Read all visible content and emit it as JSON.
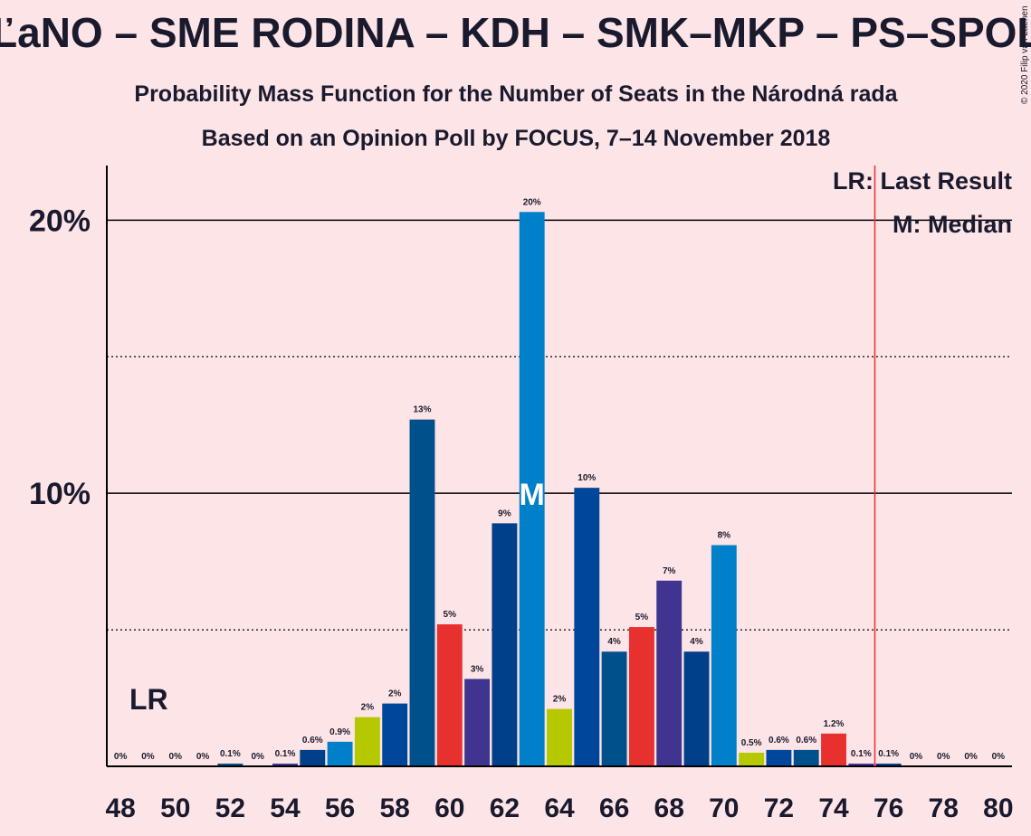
{
  "chart_data": {
    "type": "bar",
    "title": "OĽaNO – SME RODINA – KDH – SMK–MKP – PS–SPOLU",
    "subtitle": "Probability Mass Function for the Number of Seats in the Národná rada",
    "subtitle2": "Based on an Opinion Poll by FOCUS, 7–14 November 2018",
    "copyright": "© 2020 Filip van Laenen",
    "x": [
      48,
      49,
      50,
      51,
      52,
      53,
      54,
      55,
      56,
      57,
      58,
      59,
      60,
      61,
      62,
      63,
      64,
      65,
      66,
      67,
      68,
      69,
      70,
      71,
      72,
      73,
      74,
      75,
      76,
      77,
      78,
      79,
      80
    ],
    "values": [
      0,
      0,
      0,
      0,
      0.1,
      0,
      0.1,
      0.6,
      0.9,
      1.8,
      2.3,
      12.7,
      5.2,
      3.2,
      8.9,
      20.3,
      2.1,
      10.2,
      4.2,
      5.1,
      6.8,
      4.2,
      8.1,
      0.5,
      0.6,
      0.6,
      1.2,
      0.1,
      0.1,
      0,
      0,
      0,
      0
    ],
    "value_labels": [
      "0%",
      "0%",
      "0%",
      "0%",
      "0.1%",
      "0%",
      "0.1%",
      "0.6%",
      "0.9%",
      "2%",
      "2%",
      "13%",
      "5%",
      "3%",
      "9%",
      "20%",
      "2%",
      "10%",
      "4%",
      "5%",
      "7%",
      "4%",
      "8%",
      "0.5%",
      "0.6%",
      "0.6%",
      "1.2%",
      "0.1%",
      "0.1%",
      "0%",
      "0%",
      "0%",
      "0%"
    ],
    "colors": [
      "#003f8a",
      "#0080c8",
      "#b5c800",
      "#00469b",
      "#00508c",
      "#e8302f",
      "#3f3590"
    ],
    "xlim": [
      47.5,
      80.5
    ],
    "xticks": [
      48,
      50,
      52,
      54,
      56,
      58,
      60,
      62,
      64,
      66,
      68,
      70,
      72,
      74,
      76,
      78,
      80
    ],
    "ylim": [
      0,
      22
    ],
    "yticks": [
      {
        "value": 10,
        "label": "10%"
      },
      {
        "value": 20,
        "label": "20%"
      }
    ],
    "minor_yticks": [
      5,
      15
    ],
    "grid": true,
    "median": 63,
    "median_label": "M",
    "last_result": 75.5,
    "last_result_label": "LR",
    "legend": [
      "LR: Last Result",
      "M: Median"
    ]
  }
}
